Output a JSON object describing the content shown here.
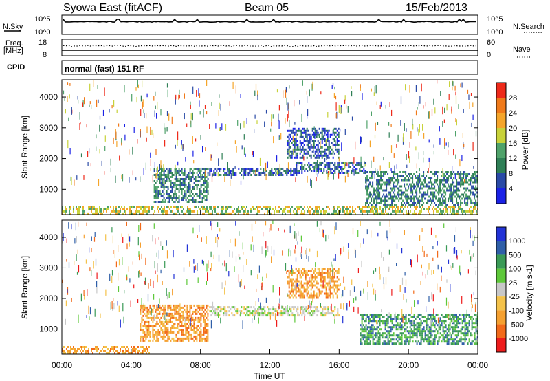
{
  "header": {
    "title": "Syowa East (fitACF)",
    "beam": "Beam 05",
    "date": "15/Feb/2013"
  },
  "status_panels": {
    "nsky": {
      "label": "N.Sky",
      "top_tick": "10^5",
      "bottom_tick": "10^0"
    },
    "nsearch": {
      "label": "N.Search",
      "top_tick": "10^5",
      "bottom_tick": "10^0"
    },
    "freq": {
      "label": "Freq.",
      "unit": "[MHz]",
      "top_tick": "18",
      "bottom_tick": "8"
    },
    "nave": {
      "label": "Nave",
      "top_tick": "60",
      "bottom_tick": "0"
    },
    "cpid": {
      "label": "CPID",
      "value": "normal (fast) 151 RF"
    }
  },
  "colors": {
    "power_scale": [
      "#1b22e6",
      "#2a4aa6",
      "#2f7f56",
      "#4fa26a",
      "#c8d23a",
      "#f5a52a",
      "#f07a1a",
      "#ee2a1a"
    ],
    "velocity_scale": [
      "#ee1c1c",
      "#f26a1a",
      "#f5a030",
      "#f4c24a",
      "#c8c8c8",
      "#5ec83a",
      "#3a9a56",
      "#2f5fa8",
      "#2233d6"
    ]
  },
  "chart_data": [
    {
      "type": "heatmap",
      "panel": "power",
      "ylabel": "Slant Range [km]",
      "xlabel": "",
      "x_ticks": [
        "00:00",
        "04:00",
        "08:00",
        "12:00",
        "16:00",
        "20:00",
        "00:00"
      ],
      "xlim": [
        0,
        24
      ],
      "ylim": [
        180,
        4560
      ],
      "y_ticks": [
        1000,
        2000,
        3000,
        4000
      ],
      "colorbar": {
        "label": "Power [dB]",
        "range": [
          0,
          32
        ],
        "ticks": [
          "4",
          "8",
          "12",
          "16",
          "20",
          "24",
          "28"
        ]
      },
      "features": [
        {
          "t_start": 0.0,
          "t_end": 24.0,
          "range_km": [
            200,
            450
          ],
          "value": 18
        },
        {
          "t_start": 5.3,
          "t_end": 8.4,
          "range_km": [
            600,
            1700
          ],
          "value": 12
        },
        {
          "t_start": 8.5,
          "t_end": 13.5,
          "range_km": [
            1450,
            1700
          ],
          "value": 8
        },
        {
          "t_start": 13.5,
          "t_end": 17.5,
          "range_km": [
            1500,
            1900
          ],
          "value": 8
        },
        {
          "t_start": 17.5,
          "t_end": 24.0,
          "range_km": [
            500,
            1600
          ],
          "value": 12
        },
        {
          "t_start": 13.0,
          "t_end": 16.0,
          "range_km": [
            2000,
            3000
          ],
          "value": 8
        }
      ]
    },
    {
      "type": "heatmap",
      "panel": "velocity",
      "ylabel": "Slant Range [km]",
      "xlabel": "Time UT",
      "x_ticks": [
        "00:00",
        "04:00",
        "08:00",
        "12:00",
        "16:00",
        "20:00",
        "00:00"
      ],
      "xlim": [
        0,
        24
      ],
      "ylim": [
        180,
        4560
      ],
      "y_ticks": [
        1000,
        2000,
        3000,
        4000
      ],
      "colorbar": {
        "label": "Velocity [m s-1]",
        "ticks": [
          "1000",
          "500",
          "100",
          "25",
          "-25",
          "-100",
          "-500",
          "-1000"
        ]
      },
      "features": [
        {
          "t_start": 0.0,
          "t_end": 5.0,
          "range_km": [
            200,
            450
          ],
          "value": -100
        },
        {
          "t_start": 4.5,
          "t_end": 8.4,
          "range_km": [
            600,
            1800
          ],
          "value": -300
        },
        {
          "t_start": 8.5,
          "t_end": 16.0,
          "range_km": [
            1450,
            1750
          ],
          "value": 0
        },
        {
          "t_start": 17.2,
          "t_end": 24.0,
          "range_km": [
            500,
            1500
          ],
          "value": 200
        },
        {
          "t_start": 13.0,
          "t_end": 16.0,
          "range_km": [
            2000,
            3000
          ],
          "value": -300
        }
      ]
    }
  ]
}
